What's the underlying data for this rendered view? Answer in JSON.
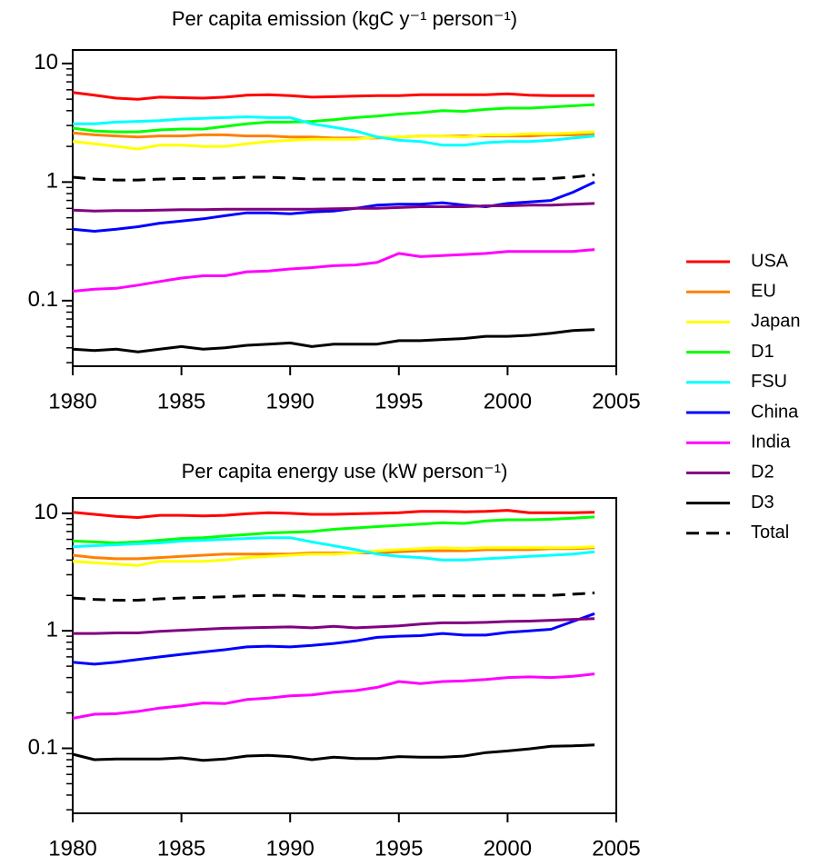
{
  "chart_data": [
    {
      "type": "line",
      "title": "Per capita emission (kgC y⁻¹ person⁻¹)",
      "x": [
        1980,
        1981,
        1982,
        1983,
        1984,
        1985,
        1986,
        1987,
        1988,
        1989,
        1990,
        1991,
        1992,
        1993,
        1994,
        1995,
        1996,
        1997,
        1998,
        1999,
        2000,
        2001,
        2002,
        2003,
        2004
      ],
      "xlim": [
        1980,
        2005
      ],
      "xticks": [
        1980,
        1985,
        1990,
        1995,
        2000,
        2005
      ],
      "ylim": [
        0.028,
        13
      ],
      "log_y": true,
      "yticks": [
        0.1,
        1,
        10
      ],
      "yminor": [
        0.03,
        0.04,
        0.05,
        0.06,
        0.07,
        0.08,
        0.09,
        0.2,
        0.3,
        0.4,
        0.5,
        0.6,
        0.7,
        0.8,
        0.9,
        2,
        3,
        4,
        5,
        6,
        7,
        8,
        9
      ],
      "series": [
        {
          "name": "USA",
          "color": "#ff0000",
          "values": [
            5.7,
            5.4,
            5.1,
            5.0,
            5.2,
            5.15,
            5.1,
            5.2,
            5.4,
            5.45,
            5.35,
            5.2,
            5.25,
            5.3,
            5.35,
            5.35,
            5.45,
            5.45,
            5.45,
            5.45,
            5.55,
            5.4,
            5.35,
            5.35,
            5.35
          ]
        },
        {
          "name": "EU",
          "color": "#ff8000",
          "values": [
            2.6,
            2.5,
            2.45,
            2.4,
            2.45,
            2.45,
            2.5,
            2.5,
            2.45,
            2.45,
            2.4,
            2.4,
            2.35,
            2.35,
            2.35,
            2.4,
            2.45,
            2.45,
            2.45,
            2.45,
            2.45,
            2.45,
            2.5,
            2.5,
            2.55
          ]
        },
        {
          "name": "Japan",
          "color": "#ffff00",
          "values": [
            2.2,
            2.1,
            2.0,
            1.9,
            2.05,
            2.05,
            2.0,
            2.0,
            2.1,
            2.2,
            2.25,
            2.3,
            2.3,
            2.3,
            2.4,
            2.4,
            2.45,
            2.45,
            2.4,
            2.5,
            2.5,
            2.55,
            2.55,
            2.6,
            2.65
          ]
        },
        {
          "name": "D1",
          "color": "#00ff00",
          "values": [
            2.85,
            2.7,
            2.65,
            2.65,
            2.75,
            2.8,
            2.8,
            2.95,
            3.1,
            3.2,
            3.2,
            3.25,
            3.35,
            3.5,
            3.6,
            3.75,
            3.85,
            4.0,
            3.95,
            4.1,
            4.2,
            4.2,
            4.3,
            4.4,
            4.5
          ]
        },
        {
          "name": "FSU",
          "color": "#00ffff",
          "values": [
            3.1,
            3.1,
            3.2,
            3.25,
            3.3,
            3.4,
            3.45,
            3.5,
            3.55,
            3.5,
            3.5,
            3.1,
            2.9,
            2.7,
            2.4,
            2.25,
            2.2,
            2.05,
            2.05,
            2.15,
            2.2,
            2.2,
            2.25,
            2.35,
            2.45
          ]
        },
        {
          "name": "China",
          "color": "#0000ff",
          "values": [
            0.4,
            0.385,
            0.4,
            0.42,
            0.45,
            0.47,
            0.49,
            0.52,
            0.55,
            0.55,
            0.54,
            0.56,
            0.57,
            0.6,
            0.64,
            0.65,
            0.65,
            0.67,
            0.64,
            0.62,
            0.66,
            0.68,
            0.7,
            0.82,
            1.0
          ]
        },
        {
          "name": "India",
          "color": "#ff00ff",
          "values": [
            0.12,
            0.125,
            0.127,
            0.135,
            0.145,
            0.155,
            0.162,
            0.162,
            0.175,
            0.178,
            0.185,
            0.19,
            0.197,
            0.2,
            0.21,
            0.25,
            0.235,
            0.24,
            0.245,
            0.25,
            0.26,
            0.26,
            0.26,
            0.26,
            0.27
          ]
        },
        {
          "name": "D2",
          "color": "#800080",
          "values": [
            0.58,
            0.57,
            0.575,
            0.575,
            0.58,
            0.585,
            0.585,
            0.59,
            0.59,
            0.59,
            0.59,
            0.59,
            0.595,
            0.6,
            0.6,
            0.61,
            0.62,
            0.62,
            0.62,
            0.63,
            0.63,
            0.64,
            0.64,
            0.65,
            0.66
          ]
        },
        {
          "name": "D3",
          "color": "#000000",
          "values": [
            0.039,
            0.038,
            0.039,
            0.037,
            0.039,
            0.041,
            0.039,
            0.04,
            0.042,
            0.043,
            0.044,
            0.041,
            0.043,
            0.043,
            0.043,
            0.046,
            0.046,
            0.047,
            0.048,
            0.05,
            0.05,
            0.051,
            0.053,
            0.056,
            0.057
          ]
        },
        {
          "name": "Total",
          "color": "#000000",
          "dash": true,
          "values": [
            1.1,
            1.06,
            1.04,
            1.04,
            1.06,
            1.07,
            1.07,
            1.08,
            1.1,
            1.1,
            1.08,
            1.06,
            1.06,
            1.06,
            1.05,
            1.05,
            1.06,
            1.06,
            1.05,
            1.05,
            1.06,
            1.06,
            1.07,
            1.1,
            1.15
          ]
        }
      ]
    },
    {
      "type": "line",
      "title": "Per capita energy use (kW person⁻¹)",
      "x": [
        1980,
        1981,
        1982,
        1983,
        1984,
        1985,
        1986,
        1987,
        1988,
        1989,
        1990,
        1991,
        1992,
        1993,
        1994,
        1995,
        1996,
        1997,
        1998,
        1999,
        2000,
        2001,
        2002,
        2003,
        2004
      ],
      "xlim": [
        1980,
        2005
      ],
      "xticks": [
        1980,
        1985,
        1990,
        1995,
        2000,
        2005
      ],
      "ylim": [
        0.028,
        13.5
      ],
      "log_y": true,
      "yticks": [
        0.1,
        1,
        10
      ],
      "yminor": [
        0.03,
        0.04,
        0.05,
        0.06,
        0.07,
        0.08,
        0.09,
        0.2,
        0.3,
        0.4,
        0.5,
        0.6,
        0.7,
        0.8,
        0.9,
        2,
        3,
        4,
        5,
        6,
        7,
        8,
        9
      ],
      "series": [
        {
          "color": "#ff0000",
          "values": [
            10.2,
            9.8,
            9.4,
            9.2,
            9.6,
            9.6,
            9.5,
            9.6,
            9.9,
            10.1,
            10.0,
            9.8,
            9.8,
            9.9,
            10.0,
            10.1,
            10.4,
            10.4,
            10.3,
            10.4,
            10.6,
            10.1,
            10.1,
            10.1,
            10.2
          ]
        },
        {
          "color": "#ff8000",
          "values": [
            4.4,
            4.2,
            4.1,
            4.1,
            4.2,
            4.3,
            4.4,
            4.5,
            4.5,
            4.5,
            4.5,
            4.6,
            4.6,
            4.6,
            4.6,
            4.7,
            4.8,
            4.8,
            4.8,
            4.9,
            4.9,
            4.9,
            5.0,
            5.0,
            5.1
          ]
        },
        {
          "color": "#ffff00",
          "values": [
            3.9,
            3.8,
            3.7,
            3.6,
            3.9,
            3.9,
            3.9,
            4.0,
            4.2,
            4.3,
            4.4,
            4.5,
            4.5,
            4.6,
            4.8,
            4.9,
            5.0,
            5.1,
            5.0,
            5.1,
            5.1,
            5.1,
            5.1,
            5.1,
            5.2
          ]
        },
        {
          "color": "#00ff00",
          "values": [
            5.8,
            5.7,
            5.6,
            5.7,
            5.9,
            6.1,
            6.2,
            6.4,
            6.6,
            6.8,
            6.9,
            7.0,
            7.3,
            7.5,
            7.7,
            7.9,
            8.1,
            8.3,
            8.2,
            8.6,
            8.8,
            8.8,
            8.9,
            9.1,
            9.3
          ]
        },
        {
          "color": "#00ffff",
          "values": [
            5.2,
            5.3,
            5.4,
            5.5,
            5.6,
            5.8,
            5.9,
            6.0,
            6.1,
            6.2,
            6.2,
            5.7,
            5.3,
            4.9,
            4.5,
            4.3,
            4.2,
            4.0,
            4.0,
            4.1,
            4.2,
            4.3,
            4.4,
            4.5,
            4.7
          ]
        },
        {
          "color": "#0000ff",
          "values": [
            0.54,
            0.52,
            0.54,
            0.57,
            0.6,
            0.63,
            0.66,
            0.69,
            0.73,
            0.74,
            0.73,
            0.75,
            0.78,
            0.82,
            0.88,
            0.9,
            0.91,
            0.95,
            0.92,
            0.92,
            0.97,
            1.0,
            1.03,
            1.2,
            1.4
          ]
        },
        {
          "color": "#ff00ff",
          "values": [
            0.18,
            0.195,
            0.197,
            0.206,
            0.22,
            0.23,
            0.243,
            0.24,
            0.26,
            0.267,
            0.28,
            0.285,
            0.3,
            0.31,
            0.33,
            0.37,
            0.355,
            0.37,
            0.375,
            0.385,
            0.4,
            0.405,
            0.4,
            0.41,
            0.43
          ]
        },
        {
          "color": "#800080",
          "values": [
            0.95,
            0.95,
            0.96,
            0.96,
            0.99,
            1.01,
            1.03,
            1.05,
            1.06,
            1.07,
            1.08,
            1.06,
            1.09,
            1.06,
            1.08,
            1.1,
            1.14,
            1.17,
            1.17,
            1.18,
            1.2,
            1.21,
            1.23,
            1.25,
            1.27
          ]
        },
        {
          "color": "#000000",
          "values": [
            0.089,
            0.08,
            0.081,
            0.081,
            0.081,
            0.083,
            0.079,
            0.081,
            0.086,
            0.087,
            0.085,
            0.08,
            0.084,
            0.082,
            0.082,
            0.085,
            0.084,
            0.084,
            0.086,
            0.092,
            0.095,
            0.099,
            0.104,
            0.105,
            0.107
          ]
        },
        {
          "color": "#000000",
          "dash": true,
          "values": [
            1.9,
            1.85,
            1.82,
            1.82,
            1.87,
            1.9,
            1.92,
            1.95,
            1.98,
            2.0,
            2.0,
            1.96,
            1.96,
            1.95,
            1.95,
            1.96,
            1.98,
            1.99,
            1.98,
            1.99,
            2.0,
            2.0,
            2.0,
            2.05,
            2.1
          ]
        }
      ]
    }
  ]
}
